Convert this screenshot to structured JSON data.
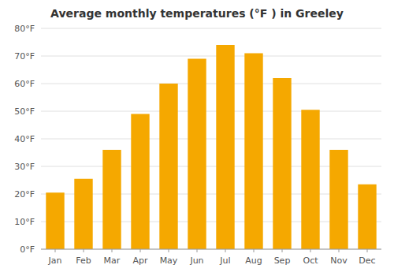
{
  "chart_data": {
    "type": "bar",
    "title": "Average monthly temperatures (°F ) in Greeley",
    "categories": [
      "Jan",
      "Feb",
      "Mar",
      "Apr",
      "May",
      "Jun",
      "Jul",
      "Aug",
      "Sep",
      "Oct",
      "Nov",
      "Dec"
    ],
    "values": [
      20.5,
      25.5,
      36,
      49,
      60,
      69,
      74,
      71,
      62,
      50.5,
      36,
      23.5
    ],
    "color": "#F5A800",
    "ylim": [
      0,
      80
    ],
    "yticks": [
      {
        "value": 0,
        "label": "0°F"
      },
      {
        "value": 10,
        "label": "10°F"
      },
      {
        "value": 20,
        "label": "20°F"
      },
      {
        "value": 30,
        "label": "30°F"
      },
      {
        "value": 40,
        "label": "40°F"
      },
      {
        "value": 50,
        "label": "50°F"
      },
      {
        "value": 60,
        "label": "60°F"
      },
      {
        "value": 70,
        "label": "70°F"
      },
      {
        "value": 80,
        "label": "80°F"
      }
    ],
    "grid": true
  }
}
